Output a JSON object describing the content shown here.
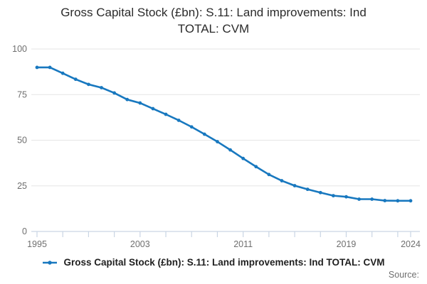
{
  "title": {
    "line1": "Gross Capital Stock (£bn): S.11: Land improvements: Ind",
    "line2": "TOTAL: CVM",
    "full": "Gross Capital Stock (£bn): S.11: Land improvements: Ind TOTAL: CVM"
  },
  "legend": {
    "label": "Gross Capital Stock (£bn): S.11: Land improvements: Ind TOTAL: CVM"
  },
  "footer": {
    "source_label": "Source:"
  },
  "colors": {
    "line": "#1878bf",
    "grid": "#e6e6e6",
    "axis": "#c9d5e4",
    "tick_text": "#6f6f6f",
    "title_text": "#2b2b2b"
  },
  "chart_data": {
    "type": "line",
    "title": "Gross Capital Stock (£bn): S.11: Land improvements: Ind TOTAL: CVM",
    "xlabel": "",
    "ylabel": "",
    "x": [
      1995,
      1996,
      1997,
      1998,
      1999,
      2000,
      2001,
      2002,
      2003,
      2004,
      2005,
      2006,
      2007,
      2008,
      2009,
      2010,
      2011,
      2012,
      2013,
      2014,
      2015,
      2016,
      2017,
      2018,
      2019,
      2020,
      2021,
      2022,
      2023,
      2024
    ],
    "series": [
      {
        "name": "Gross Capital Stock (£bn): S.11: Land improvements: Ind TOTAL: CVM",
        "values": [
          89.9,
          89.9,
          86.7,
          83.4,
          80.6,
          78.8,
          75.9,
          72.3,
          70.4,
          67.3,
          64.2,
          60.9,
          57.3,
          53.3,
          49.2,
          44.7,
          40.0,
          35.5,
          31.2,
          27.8,
          25.1,
          23.1,
          21.3,
          19.6,
          19.0,
          17.7,
          17.7,
          16.9,
          16.8,
          16.8
        ]
      }
    ],
    "ylim": [
      0,
      100
    ],
    "yticks": [
      0,
      25,
      50,
      75,
      100
    ],
    "xticks_labeled": [
      1995,
      2003,
      2011,
      2019,
      2024
    ],
    "xticks_minor_step_years": 2,
    "grid": "horizontal",
    "legend_position": "bottom",
    "marker": "circle"
  }
}
